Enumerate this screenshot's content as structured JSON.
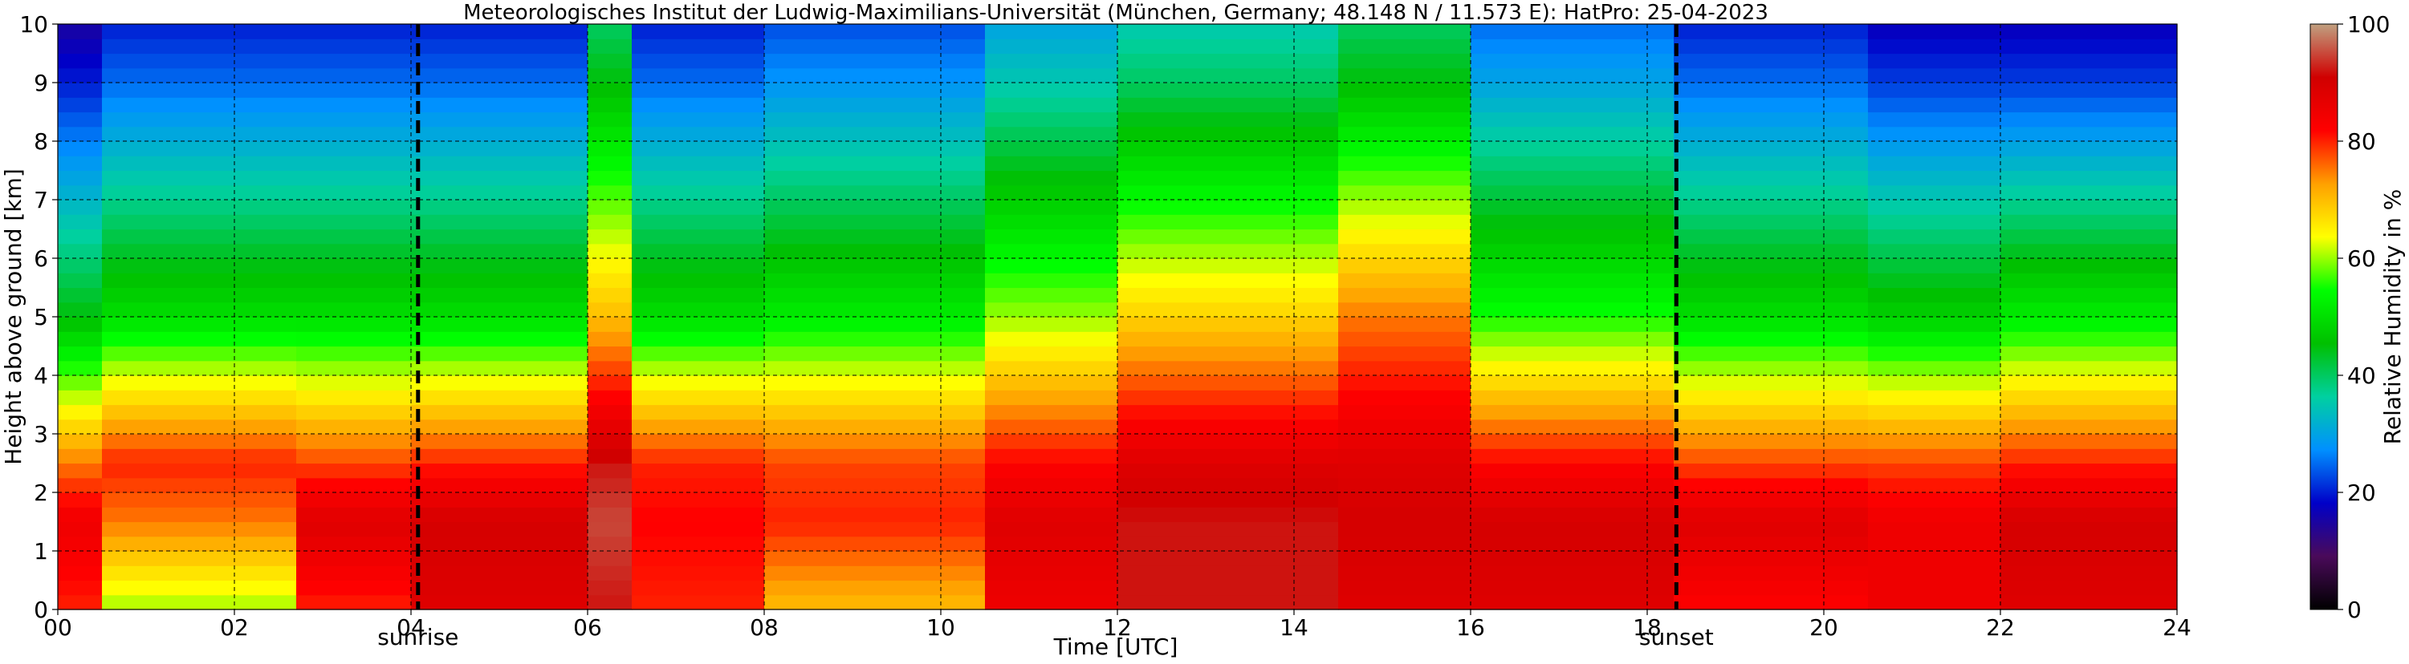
{
  "chart_data": {
    "type": "heatmap",
    "title": "Meteorologisches Institut der Ludwig-Maximilians-Universität (München, Germany; 48.148 N / 11.573 E):    HatPro: 25-04-2023",
    "xlabel": "Time [UTC]",
    "ylabel": "Height above ground [km]",
    "xlim": [
      0,
      24
    ],
    "ylim": [
      0,
      10
    ],
    "x_ticks": [
      0,
      2,
      4,
      6,
      8,
      10,
      12,
      14,
      16,
      18,
      20,
      22,
      24
    ],
    "x_tick_labels": [
      "00",
      "02",
      "04",
      "06",
      "08",
      "10",
      "12",
      "14",
      "16",
      "18",
      "20",
      "22",
      "24"
    ],
    "y_ticks": [
      0,
      1,
      2,
      3,
      4,
      5,
      6,
      7,
      8,
      9,
      10
    ],
    "y_tick_labels": [
      "0",
      "1",
      "2",
      "3",
      "4",
      "5",
      "6",
      "7",
      "8",
      "9",
      "10"
    ],
    "grid": true,
    "markers": [
      {
        "label": "sunrise",
        "x": 4.08
      },
      {
        "label": "sunset",
        "x": 18.33
      }
    ],
    "colorbar": {
      "label": "Relative Humidity in %",
      "range": [
        0,
        100
      ],
      "ticks": [
        0,
        20,
        40,
        60,
        80,
        100
      ],
      "tick_labels": [
        "0",
        "20",
        "40",
        "60",
        "80",
        "100"
      ],
      "colors": [
        "#000000",
        "#4a0a5a",
        "#0000c8",
        "#0090ff",
        "#00d0a0",
        "#00c000",
        "#00ff00",
        "#ffff00",
        "#ffa000",
        "#ff0000",
        "#d00000",
        "#c0a080"
      ]
    },
    "humidity_profiles": [
      {
        "time_range": [
          0.0,
          0.5
        ],
        "rh_near_surface": 80,
        "rh_0_to_2km": 85,
        "rh_2_to_3km": 75,
        "rh_4_to_6km": 45,
        "rh_8_to_10km": 20
      },
      {
        "time_range": [
          0.5,
          2.7
        ],
        "rh_near_surface": 60,
        "rh_0_to_2km": 75,
        "rh_2_to_3km": 80,
        "rh_4_to_6km": 50,
        "rh_8_to_10km": 25
      },
      {
        "time_range": [
          2.7,
          4.0
        ],
        "rh_near_surface": 80,
        "rh_0_to_2km": 88,
        "rh_2_to_3km": 78,
        "rh_4_to_6km": 50,
        "rh_8_to_10km": 25
      },
      {
        "time_range": [
          4.0,
          6.0
        ],
        "rh_near_surface": 88,
        "rh_0_to_2km": 90,
        "rh_2_to_3km": 80,
        "rh_4_to_6km": 50,
        "rh_8_to_10km": 25
      },
      {
        "time_range": [
          6.0,
          6.5
        ],
        "rh_near_surface": 92,
        "rh_0_to_2km": 95,
        "rh_2_to_3km": 92,
        "rh_4_to_6km": 70,
        "rh_8_to_10km": 45
      },
      {
        "time_range": [
          6.5,
          8.0
        ],
        "rh_near_surface": 80,
        "rh_0_to_2km": 82,
        "rh_2_to_3km": 80,
        "rh_4_to_6km": 50,
        "rh_8_to_10km": 25
      },
      {
        "time_range": [
          8.0,
          10.5
        ],
        "rh_near_surface": 70,
        "rh_0_to_2km": 80,
        "rh_2_to_3km": 78,
        "rh_4_to_6km": 52,
        "rh_8_to_10km": 28
      },
      {
        "time_range": [
          10.5,
          12.0
        ],
        "rh_near_surface": 85,
        "rh_0_to_2km": 88,
        "rh_2_to_3km": 82,
        "rh_4_to_6km": 60,
        "rh_8_to_10km": 35
      },
      {
        "time_range": [
          12.0,
          14.5
        ],
        "rh_near_surface": 92,
        "rh_0_to_2km": 92,
        "rh_2_to_3km": 88,
        "rh_4_to_6km": 68,
        "rh_8_to_10km": 40
      },
      {
        "time_range": [
          14.5,
          16.0
        ],
        "rh_near_surface": 88,
        "rh_0_to_2km": 90,
        "rh_2_to_3km": 88,
        "rh_4_to_6km": 75,
        "rh_8_to_10km": 45
      },
      {
        "time_range": [
          16.0,
          18.3
        ],
        "rh_near_surface": 88,
        "rh_0_to_2km": 90,
        "rh_2_to_3km": 82,
        "rh_4_to_6km": 55,
        "rh_8_to_10km": 30
      },
      {
        "time_range": [
          18.3,
          20.5
        ],
        "rh_near_surface": 82,
        "rh_0_to_2km": 88,
        "rh_2_to_3km": 78,
        "rh_4_to_6km": 50,
        "rh_8_to_10km": 25
      },
      {
        "time_range": [
          20.5,
          22.0
        ],
        "rh_near_surface": 85,
        "rh_0_to_2km": 85,
        "rh_2_to_3km": 78,
        "rh_4_to_6km": 48,
        "rh_8_to_10km": 22
      },
      {
        "time_range": [
          22.0,
          24.0
        ],
        "rh_near_surface": 88,
        "rh_0_to_2km": 90,
        "rh_2_to_3km": 80,
        "rh_4_to_6km": 52,
        "rh_8_to_10km": 22
      }
    ]
  }
}
